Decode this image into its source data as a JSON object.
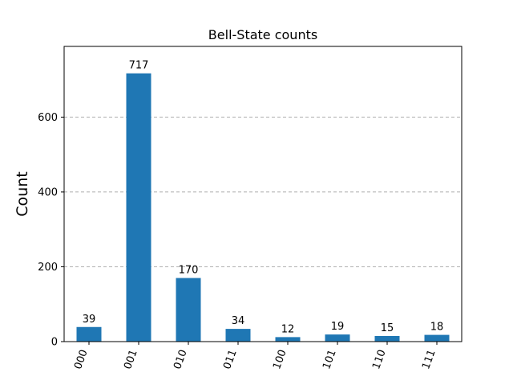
{
  "chart_data": {
    "type": "bar",
    "title": "Bell-State counts",
    "xlabel": "",
    "ylabel": "Count",
    "categories": [
      "000",
      "001",
      "010",
      "011",
      "100",
      "101",
      "110",
      "111"
    ],
    "values": [
      39,
      717,
      170,
      34,
      12,
      19,
      15,
      18
    ],
    "yticks": [
      0,
      200,
      400,
      600
    ],
    "ylim": [
      0,
      789
    ],
    "grid": "y-dashed",
    "bar_color": "#1f77b4",
    "grid_color": "#b0b0b0"
  }
}
